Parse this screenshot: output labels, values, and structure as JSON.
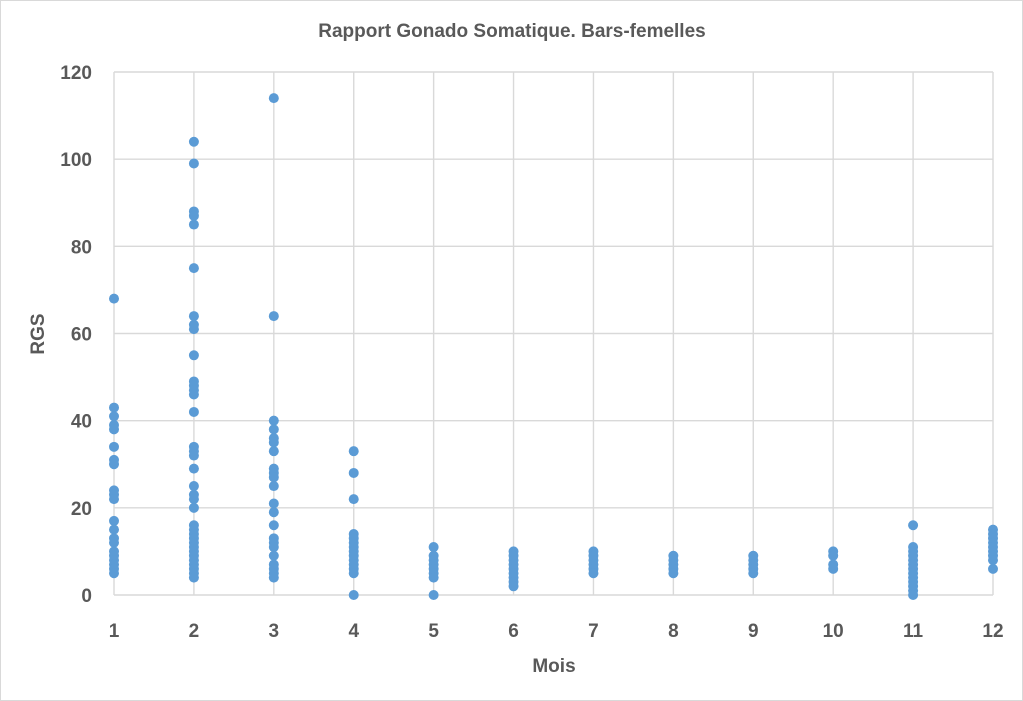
{
  "chart_data": {
    "type": "scatter",
    "title": "Rapport Gonado Somatique. Bars-femelles",
    "xlabel": "Mois",
    "ylabel": "RGS",
    "xlim": [
      1,
      12
    ],
    "ylim": [
      0,
      120
    ],
    "x_ticks": [
      1,
      2,
      3,
      4,
      5,
      6,
      7,
      8,
      9,
      10,
      11,
      12
    ],
    "y_ticks": [
      0,
      20,
      40,
      60,
      80,
      100,
      120
    ],
    "grid": true,
    "color": "#5b9bd5",
    "series": [
      {
        "points": [
          [
            1,
            68
          ],
          [
            1,
            43
          ],
          [
            1,
            41
          ],
          [
            1,
            39
          ],
          [
            1,
            38
          ],
          [
            1,
            34
          ],
          [
            1,
            31
          ],
          [
            1,
            30
          ],
          [
            1,
            24
          ],
          [
            1,
            23
          ],
          [
            1,
            22
          ],
          [
            1,
            17
          ],
          [
            1,
            15
          ],
          [
            1,
            13
          ],
          [
            1,
            12
          ],
          [
            1,
            10
          ],
          [
            1,
            9
          ],
          [
            1,
            8
          ],
          [
            1,
            7
          ],
          [
            1,
            6
          ],
          [
            1,
            5
          ],
          [
            2,
            104
          ],
          [
            2,
            99
          ],
          [
            2,
            88
          ],
          [
            2,
            87
          ],
          [
            2,
            85
          ],
          [
            2,
            75
          ],
          [
            2,
            64
          ],
          [
            2,
            62
          ],
          [
            2,
            61
          ],
          [
            2,
            55
          ],
          [
            2,
            49
          ],
          [
            2,
            48
          ],
          [
            2,
            47
          ],
          [
            2,
            46
          ],
          [
            2,
            42
          ],
          [
            2,
            34
          ],
          [
            2,
            33
          ],
          [
            2,
            32
          ],
          [
            2,
            29
          ],
          [
            2,
            25
          ],
          [
            2,
            23
          ],
          [
            2,
            22
          ],
          [
            2,
            20
          ],
          [
            2,
            16
          ],
          [
            2,
            15
          ],
          [
            2,
            14
          ],
          [
            2,
            13
          ],
          [
            2,
            12
          ],
          [
            2,
            11
          ],
          [
            2,
            10
          ],
          [
            2,
            9
          ],
          [
            2,
            8
          ],
          [
            2,
            7
          ],
          [
            2,
            6
          ],
          [
            2,
            5
          ],
          [
            2,
            4
          ],
          [
            3,
            114
          ],
          [
            3,
            64
          ],
          [
            3,
            40
          ],
          [
            3,
            38
          ],
          [
            3,
            36
          ],
          [
            3,
            35
          ],
          [
            3,
            33
          ],
          [
            3,
            29
          ],
          [
            3,
            28
          ],
          [
            3,
            27
          ],
          [
            3,
            25
          ],
          [
            3,
            21
          ],
          [
            3,
            19
          ],
          [
            3,
            16
          ],
          [
            3,
            13
          ],
          [
            3,
            12
          ],
          [
            3,
            11
          ],
          [
            3,
            9
          ],
          [
            3,
            7
          ],
          [
            3,
            6
          ],
          [
            3,
            5
          ],
          [
            3,
            4
          ],
          [
            4,
            33
          ],
          [
            4,
            28
          ],
          [
            4,
            22
          ],
          [
            4,
            14
          ],
          [
            4,
            13
          ],
          [
            4,
            12
          ],
          [
            4,
            11
          ],
          [
            4,
            10
          ],
          [
            4,
            9
          ],
          [
            4,
            8
          ],
          [
            4,
            7
          ],
          [
            4,
            6
          ],
          [
            4,
            5
          ],
          [
            4,
            0
          ],
          [
            5,
            11
          ],
          [
            5,
            9
          ],
          [
            5,
            8
          ],
          [
            5,
            7
          ],
          [
            5,
            6
          ],
          [
            5,
            5
          ],
          [
            5,
            4
          ],
          [
            5,
            0
          ],
          [
            6,
            10
          ],
          [
            6,
            9
          ],
          [
            6,
            8
          ],
          [
            6,
            7
          ],
          [
            6,
            6
          ],
          [
            6,
            5
          ],
          [
            6,
            4
          ],
          [
            6,
            3
          ],
          [
            6,
            2
          ],
          [
            7,
            10
          ],
          [
            7,
            9
          ],
          [
            7,
            8
          ],
          [
            7,
            7
          ],
          [
            7,
            6
          ],
          [
            7,
            5
          ],
          [
            8,
            9
          ],
          [
            8,
            8
          ],
          [
            8,
            7
          ],
          [
            8,
            6
          ],
          [
            8,
            5
          ],
          [
            9,
            9
          ],
          [
            9,
            8
          ],
          [
            9,
            7
          ],
          [
            9,
            6
          ],
          [
            9,
            5
          ],
          [
            10,
            10
          ],
          [
            10,
            9
          ],
          [
            10,
            7
          ],
          [
            10,
            6
          ],
          [
            11,
            16
          ],
          [
            11,
            11
          ],
          [
            11,
            10
          ],
          [
            11,
            9
          ],
          [
            11,
            8
          ],
          [
            11,
            7
          ],
          [
            11,
            6
          ],
          [
            11,
            5
          ],
          [
            11,
            4
          ],
          [
            11,
            3
          ],
          [
            11,
            2
          ],
          [
            11,
            1
          ],
          [
            11,
            0
          ],
          [
            12,
            15
          ],
          [
            12,
            14
          ],
          [
            12,
            13
          ],
          [
            12,
            12
          ],
          [
            12,
            11
          ],
          [
            12,
            10
          ],
          [
            12,
            9
          ],
          [
            12,
            8
          ],
          [
            12,
            6
          ]
        ]
      }
    ]
  }
}
